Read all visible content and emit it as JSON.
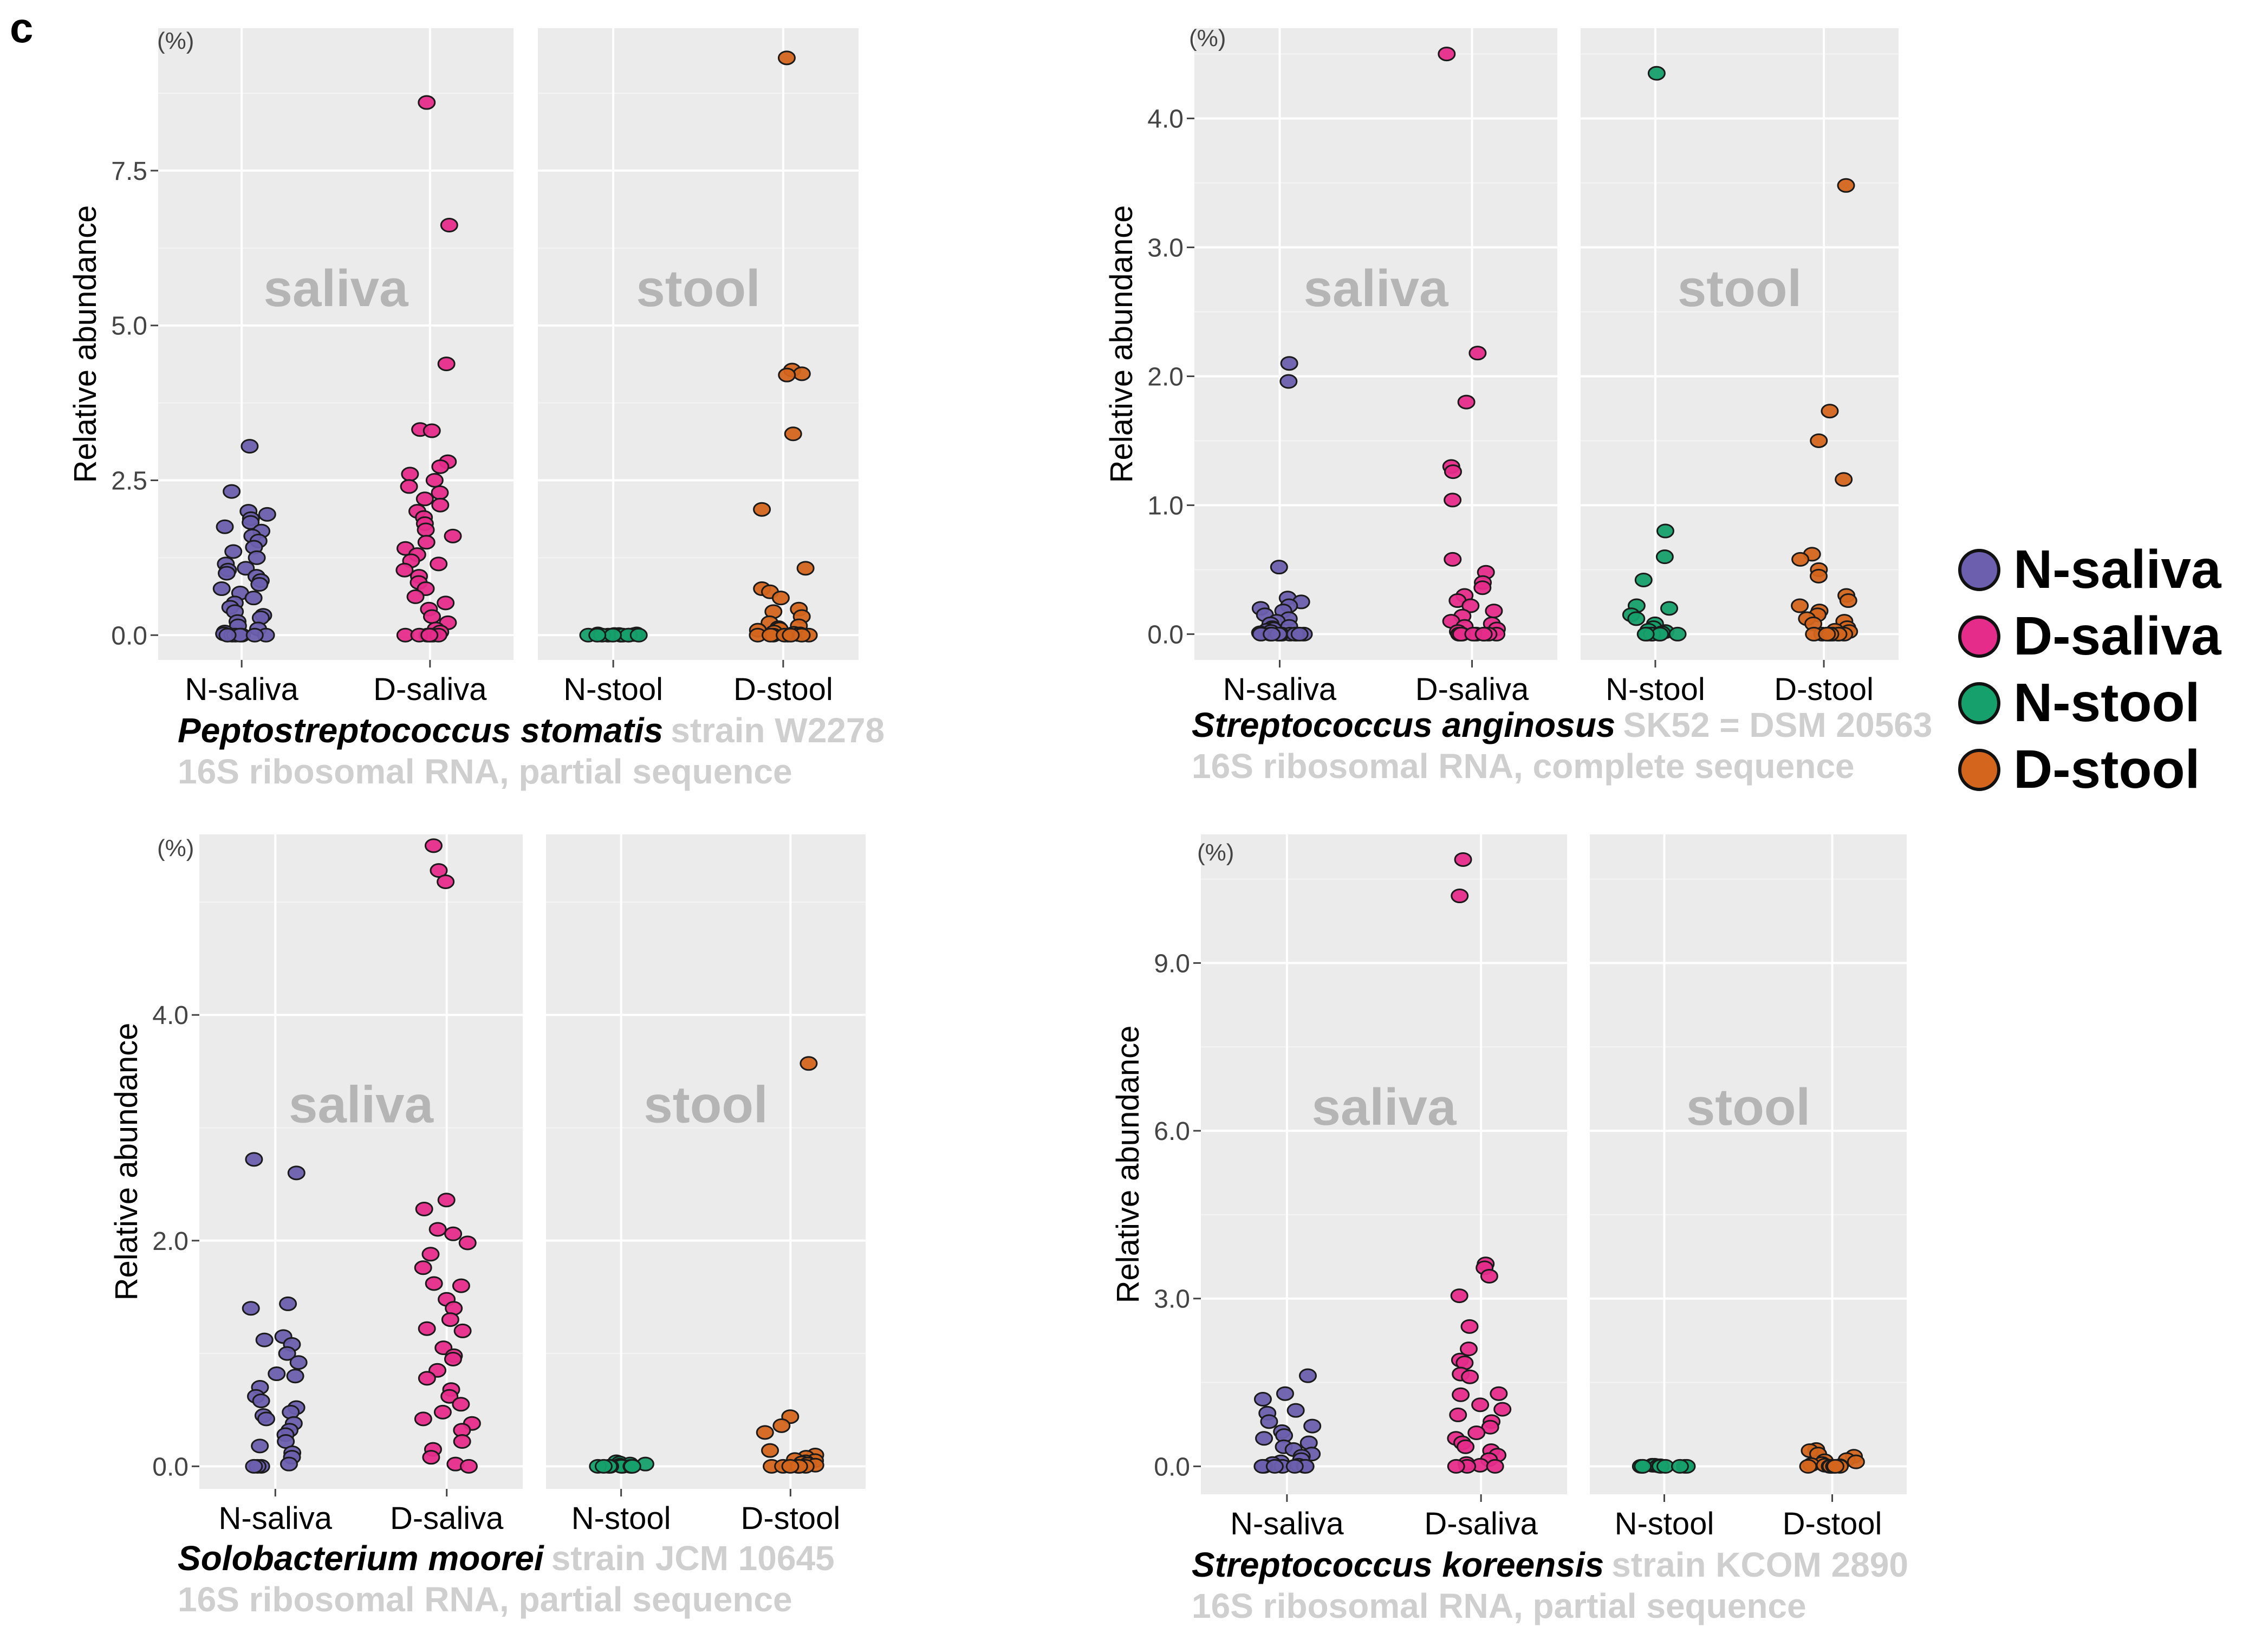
{
  "figure": {
    "panel_letter": "c",
    "legend": [
      {
        "label": "N-saliva",
        "color": "#6b5fae"
      },
      {
        "label": "D-saliva",
        "color": "#e62c8a"
      },
      {
        "label": "N-stool",
        "color": "#16a06b"
      },
      {
        "label": "D-stool",
        "color": "#d4651c"
      }
    ]
  },
  "chart_data": [
    {
      "type": "scatter",
      "title": "Peptostreptococcus stomatis",
      "strain": "strain W2278",
      "subtitle": "16S ribosomal RNA, partial sequence",
      "ylabel": "Relative abundance",
      "unit_label": "(%)",
      "ylim": [
        -0.4,
        9.8
      ],
      "yticks": [
        0.0,
        2.5,
        5.0,
        7.5
      ],
      "ytick_labels": [
        "0.0",
        "2.5",
        "5.0",
        "7.5"
      ],
      "facets": [
        {
          "name": "saliva",
          "categories": [
            "N-saliva",
            "D-saliva"
          ]
        },
        {
          "name": "stool",
          "categories": [
            "N-stool",
            "D-stool"
          ]
        }
      ],
      "series": [
        {
          "name": "N-saliva",
          "values": [
            3.05,
            2.32,
            2.0,
            1.95,
            1.88,
            1.82,
            1.75,
            1.68,
            1.6,
            1.52,
            1.42,
            1.35,
            1.25,
            1.15,
            1.08,
            1.05,
            1.0,
            0.95,
            0.88,
            0.82,
            0.75,
            0.68,
            0.6,
            0.52,
            0.45,
            0.38,
            0.32,
            0.28,
            0.22,
            0.15,
            0.1,
            0.05,
            0.02,
            0.0,
            0.0,
            0.0,
            0.0,
            0.0,
            0.0,
            0.0
          ]
        },
        {
          "name": "D-saliva",
          "values": [
            8.6,
            6.62,
            4.38,
            3.32,
            3.3,
            2.8,
            2.72,
            2.6,
            2.5,
            2.4,
            2.3,
            2.2,
            2.1,
            2.0,
            1.9,
            1.8,
            1.7,
            1.6,
            1.5,
            1.4,
            1.3,
            1.2,
            1.15,
            1.05,
            0.95,
            0.85,
            0.75,
            0.62,
            0.52,
            0.42,
            0.3,
            0.2,
            0.1,
            0.05,
            0.0,
            0.0,
            0.0,
            0.0,
            0.0,
            0.0,
            0.0
          ]
        },
        {
          "name": "N-stool",
          "values": [
            0.02,
            0.02,
            0.01,
            0.01,
            0.01,
            0.0,
            0.0,
            0.0,
            0.0,
            0.0,
            0.0,
            0.0,
            0.0,
            0.0,
            0.0,
            0.0
          ]
        },
        {
          "name": "D-stool",
          "values": [
            9.32,
            4.28,
            4.22,
            4.2,
            3.25,
            2.03,
            1.08,
            0.75,
            0.7,
            0.6,
            0.42,
            0.38,
            0.3,
            0.2,
            0.15,
            0.12,
            0.1,
            0.08,
            0.05,
            0.03,
            0.02,
            0.01,
            0.0,
            0.0,
            0.0,
            0.0,
            0.0,
            0.0,
            0.0,
            0.0
          ]
        }
      ]
    },
    {
      "type": "scatter",
      "title": "Streptococcus anginosus",
      "strain": "SK52 = DSM 20563",
      "subtitle": "16S ribosomal RNA, complete sequence",
      "ylabel": "Relative abundance",
      "unit_label": "(%)",
      "ylim": [
        -0.2,
        4.7
      ],
      "yticks": [
        0.0,
        1.0,
        2.0,
        3.0,
        4.0
      ],
      "ytick_labels": [
        "0.0",
        "1.0",
        "2.0",
        "3.0",
        "4.0"
      ],
      "facets": [
        {
          "name": "saliva",
          "categories": [
            "N-saliva",
            "D-saliva"
          ]
        },
        {
          "name": "stool",
          "categories": [
            "N-stool",
            "D-stool"
          ]
        }
      ],
      "series": [
        {
          "name": "N-saliva",
          "values": [
            2.1,
            1.96,
            0.52,
            0.28,
            0.25,
            0.22,
            0.2,
            0.18,
            0.15,
            0.12,
            0.1,
            0.08,
            0.06,
            0.05,
            0.04,
            0.03,
            0.02,
            0.01,
            0.0,
            0.0,
            0.0,
            0.0,
            0.0,
            0.0,
            0.0,
            0.0,
            0.0,
            0.0,
            0.0,
            0.0
          ]
        },
        {
          "name": "D-saliva",
          "values": [
            4.5,
            2.18,
            1.8,
            1.3,
            1.26,
            1.04,
            0.58,
            0.48,
            0.4,
            0.36,
            0.3,
            0.26,
            0.22,
            0.18,
            0.14,
            0.1,
            0.08,
            0.06,
            0.04,
            0.02,
            0.0,
            0.0,
            0.0,
            0.0,
            0.0,
            0.0,
            0.0,
            0.0,
            0.0,
            0.0
          ]
        },
        {
          "name": "N-stool",
          "values": [
            4.35,
            0.8,
            0.6,
            0.42,
            0.22,
            0.2,
            0.15,
            0.12,
            0.08,
            0.05,
            0.03,
            0.02,
            0.01,
            0.0,
            0.0,
            0.0,
            0.0,
            0.0,
            0.0,
            0.0
          ]
        },
        {
          "name": "D-stool",
          "values": [
            3.48,
            1.73,
            1.5,
            1.2,
            0.62,
            0.58,
            0.5,
            0.45,
            0.3,
            0.26,
            0.22,
            0.18,
            0.15,
            0.12,
            0.1,
            0.08,
            0.05,
            0.03,
            0.02,
            0.0,
            0.0,
            0.0,
            0.0,
            0.0,
            0.0,
            0.0,
            0.0,
            0.0
          ]
        }
      ]
    },
    {
      "type": "scatter",
      "title": "Solobacterium moorei",
      "strain": "strain JCM 10645",
      "subtitle": "16S ribosomal RNA, partial sequence",
      "ylabel": "Relative abundance",
      "unit_label": "(%)",
      "ylim": [
        -0.2,
        5.6
      ],
      "yticks": [
        0.0,
        2.0,
        4.0
      ],
      "ytick_labels": [
        "0.0",
        "2.0",
        "4.0"
      ],
      "facets": [
        {
          "name": "saliva",
          "categories": [
            "N-saliva",
            "D-saliva"
          ]
        },
        {
          "name": "stool",
          "categories": [
            "N-stool",
            "D-stool"
          ]
        }
      ],
      "series": [
        {
          "name": "N-saliva",
          "values": [
            2.72,
            2.6,
            1.44,
            1.4,
            1.15,
            1.12,
            1.08,
            1.0,
            0.92,
            0.82,
            0.8,
            0.7,
            0.62,
            0.58,
            0.52,
            0.48,
            0.45,
            0.42,
            0.38,
            0.32,
            0.28,
            0.22,
            0.18,
            0.12,
            0.08,
            0.02,
            0.0,
            0.0,
            0.0
          ]
        },
        {
          "name": "D-saliva",
          "values": [
            5.5,
            5.28,
            5.18,
            2.36,
            2.28,
            2.1,
            2.06,
            1.98,
            1.88,
            1.76,
            1.62,
            1.6,
            1.48,
            1.4,
            1.3,
            1.22,
            1.2,
            1.05,
            0.98,
            0.95,
            0.85,
            0.78,
            0.68,
            0.62,
            0.55,
            0.48,
            0.42,
            0.38,
            0.32,
            0.22,
            0.15,
            0.08,
            0.02,
            0.0
          ]
        },
        {
          "name": "N-stool",
          "values": [
            0.04,
            0.03,
            0.02,
            0.02,
            0.01,
            0.0,
            0.0,
            0.0,
            0.0,
            0.0,
            0.0,
            0.0,
            0.0,
            0.0
          ]
        },
        {
          "name": "D-stool",
          "values": [
            3.57,
            0.44,
            0.36,
            0.3,
            0.14,
            0.1,
            0.08,
            0.06,
            0.05,
            0.04,
            0.03,
            0.02,
            0.01,
            0.0,
            0.0,
            0.0,
            0.0,
            0.0,
            0.0,
            0.0
          ]
        }
      ]
    },
    {
      "type": "scatter",
      "title": "Streptococcus koreensis",
      "strain": "strain KCOM 2890",
      "subtitle": "16S ribosomal RNA, partial sequence",
      "ylabel": "Relative abundance",
      "unit_label": "(%)",
      "ylim": [
        -0.5,
        11.3
      ],
      "yticks": [
        0.0,
        3.0,
        6.0,
        9.0
      ],
      "ytick_labels": [
        "0.0",
        "3.0",
        "6.0",
        "9.0"
      ],
      "facets": [
        {
          "name": "saliva",
          "categories": [
            "N-saliva",
            "D-saliva"
          ]
        },
        {
          "name": "stool",
          "categories": [
            "N-stool",
            "D-stool"
          ]
        }
      ],
      "series": [
        {
          "name": "N-saliva",
          "values": [
            1.62,
            1.3,
            1.2,
            1.0,
            0.95,
            0.8,
            0.72,
            0.62,
            0.55,
            0.5,
            0.42,
            0.35,
            0.3,
            0.22,
            0.18,
            0.12,
            0.08,
            0.05,
            0.02,
            0.0,
            0.0,
            0.0,
            0.0,
            0.0,
            0.0,
            0.0
          ]
        },
        {
          "name": "D-saliva",
          "values": [
            10.85,
            10.2,
            3.62,
            3.55,
            3.4,
            3.05,
            2.5,
            2.1,
            1.9,
            1.85,
            1.65,
            1.6,
            1.3,
            1.28,
            1.1,
            1.02,
            0.92,
            0.8,
            0.7,
            0.6,
            0.5,
            0.42,
            0.35,
            0.28,
            0.2,
            0.12,
            0.05,
            0.02,
            0.0,
            0.0,
            0.0
          ]
        },
        {
          "name": "N-stool",
          "values": [
            0.02,
            0.02,
            0.01,
            0.01,
            0.0,
            0.0,
            0.0,
            0.0,
            0.0,
            0.0,
            0.0,
            0.0
          ]
        },
        {
          "name": "D-stool",
          "values": [
            0.3,
            0.28,
            0.22,
            0.18,
            0.12,
            0.1,
            0.08,
            0.05,
            0.03,
            0.02,
            0.01,
            0.0,
            0.0,
            0.0,
            0.0,
            0.0,
            0.0,
            0.0
          ]
        }
      ]
    }
  ]
}
